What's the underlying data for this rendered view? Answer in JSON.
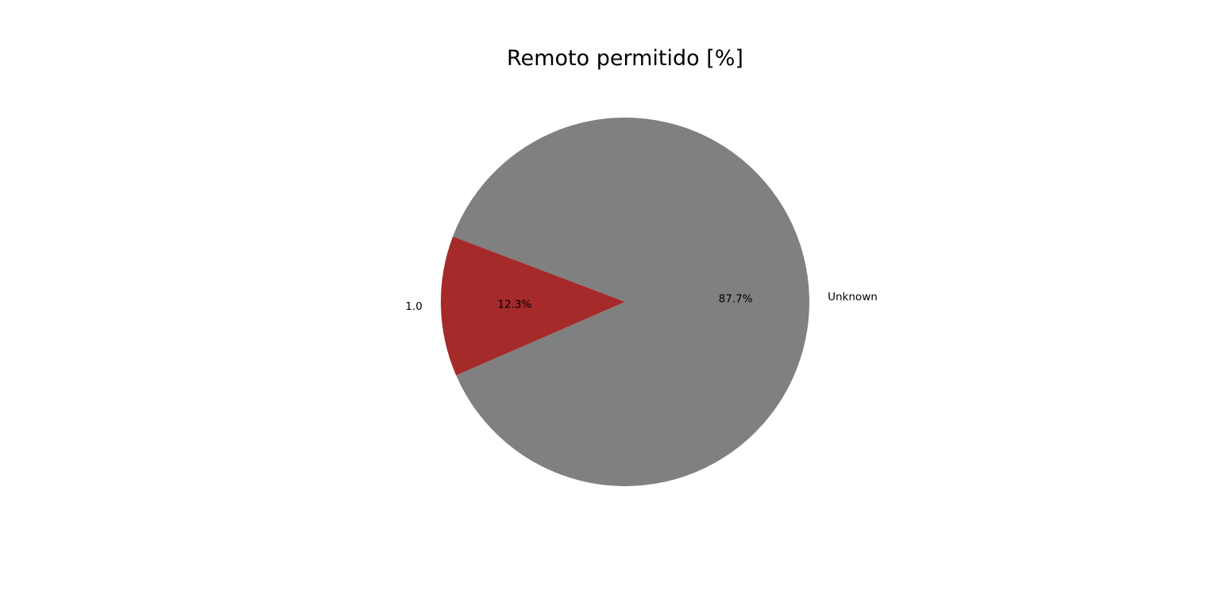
{
  "chart_data": {
    "type": "pie",
    "title": "Remoto permitido [%]",
    "slices": [
      {
        "label": "Unknown",
        "percent_label": "87.7%",
        "value": 87.7,
        "color": "#808080"
      },
      {
        "label": "1.0",
        "percent_label": "12.3%",
        "value": 12.3,
        "color": "#a52a2a"
      }
    ],
    "legend": "none"
  }
}
